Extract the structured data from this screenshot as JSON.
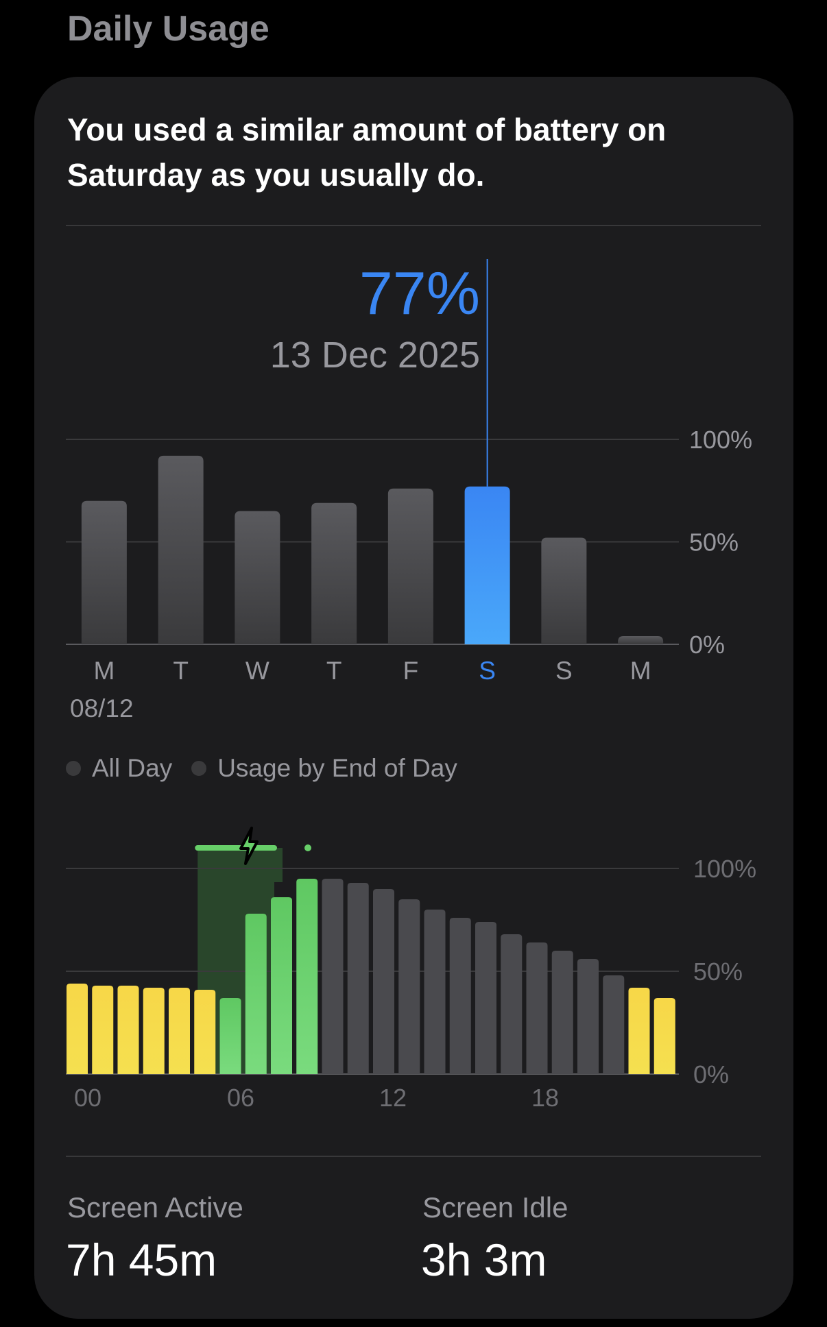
{
  "section_title": "Daily Usage",
  "card": {
    "headline": "You used a similar amount of battery on Saturday as you usually do."
  },
  "selected": {
    "value": "77%",
    "date": "13 Dec 2025"
  },
  "colors": {
    "selected_blue": "#3a86f3",
    "bar_gray": "#4a4a4e",
    "low_power_yellow": "#f7d540",
    "charging_green": "#67cf69",
    "charge_region": "#2b4d2e"
  },
  "legend": {
    "items": [
      {
        "label": "All Day",
        "dot_color": "#3a3a3c"
      },
      {
        "label": "Usage by End of Day",
        "dot_color": "#3a3a3c"
      }
    ]
  },
  "chart_data": [
    {
      "type": "bar",
      "categories": [
        "M",
        "T",
        "W",
        "T",
        "F",
        "S",
        "S",
        "M"
      ],
      "x_sublabel": "08/12",
      "values": [
        70,
        92,
        65,
        69,
        76,
        77,
        52,
        4
      ],
      "selected_index": 5,
      "ylim": [
        0,
        100
      ],
      "yticks": [
        "100%",
        "50%",
        "0%"
      ],
      "grid": true
    },
    {
      "type": "bar",
      "x_tick_labels": [
        "00",
        "06",
        "12",
        "18"
      ],
      "values": [
        44,
        43,
        43,
        42,
        42,
        41,
        37,
        78,
        86,
        95,
        95,
        93,
        90,
        85,
        80,
        76,
        74,
        68,
        64,
        60,
        56,
        48,
        42,
        37
      ],
      "bar_states": [
        "low",
        "low",
        "low",
        "low",
        "low",
        "low",
        "charging",
        "charging",
        "charging",
        "charging",
        "normal",
        "normal",
        "normal",
        "normal",
        "normal",
        "normal",
        "normal",
        "normal",
        "normal",
        "normal",
        "normal",
        "normal",
        "low",
        "low"
      ],
      "charging_hours": [
        5,
        8
      ],
      "ylim": [
        0,
        100
      ],
      "yticks": [
        "100%",
        "50%",
        "0%"
      ],
      "grid": true
    }
  ],
  "stats": {
    "screen_active": {
      "label": "Screen Active",
      "value": "7h 45m"
    },
    "screen_idle": {
      "label": "Screen Idle",
      "value": "3h 3m"
    }
  }
}
